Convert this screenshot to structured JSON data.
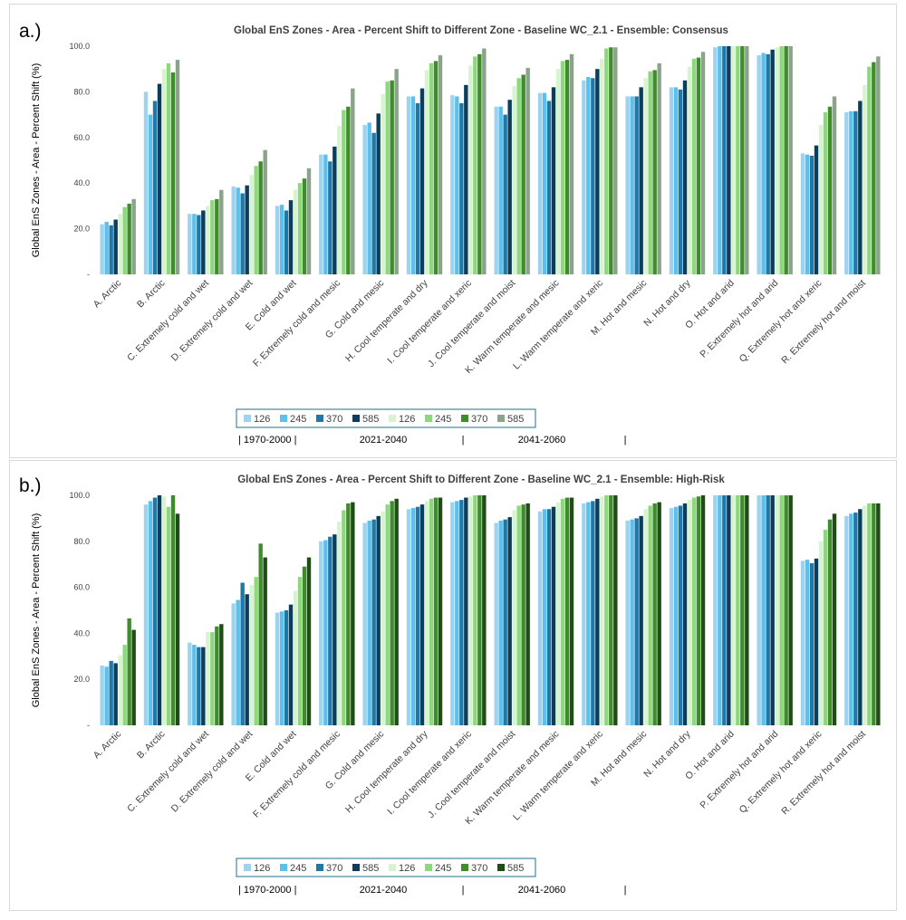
{
  "panels": [
    {
      "label": "a.)"
    },
    {
      "label": "b.)"
    }
  ],
  "periods": {
    "p1": "| 1970-2000 |",
    "p2": "2021-2040",
    "sep2": "|",
    "p3": "2041-2060",
    "sep3": "|"
  },
  "chart_data": [
    {
      "type": "bar",
      "title": "Global EnS Zones - Area - Percent Shift to Different Zone - Baseline WC_2.1 - Ensemble: Consensus",
      "ylabel": "Global EnS Zones - Area - Percent Shift (%)",
      "xlabel": "",
      "ylim": [
        0,
        100
      ],
      "yticks": [
        "-",
        "20.0",
        "40.0",
        "60.0",
        "80.0",
        "100.0"
      ],
      "legend_position": "bottom",
      "categories": [
        "A. Arctic",
        "B. Arctic",
        "C. Extremely cold and wet",
        "D. Extremely cold and wet",
        "E. Cold and wet",
        "F. Extremely cold and mesic",
        "G. Cold and mesic",
        "H. Cool temperate and dry",
        "I. Cool temperate and xeric",
        "J. Cool temperate and moist",
        "K. Warm temperate and mesic",
        "L. Warm temperate and xeric",
        "M. Hot and mesic",
        "N. Hot and dry",
        "O. Hot and arid",
        "P. Extremely hot and arid",
        "Q. Extremely hot and xeric",
        "R. Extremely hot and moist"
      ],
      "series": [
        {
          "name": "126",
          "color": "#9dd3ee",
          "values": [
            22,
            80,
            26.5,
            38.5,
            30,
            52.5,
            65.5,
            78,
            78.5,
            73.5,
            79.5,
            85,
            78,
            82,
            99.5,
            96,
            53,
            71
          ]
        },
        {
          "name": "245",
          "color": "#5bc0eb",
          "values": [
            23,
            70,
            26.5,
            38,
            30.5,
            52.5,
            66.5,
            78,
            78,
            73.5,
            79.5,
            86.5,
            78,
            82,
            100,
            97,
            52.5,
            71.5
          ]
        },
        {
          "name": "370",
          "color": "#1f79a8",
          "values": [
            21.5,
            76,
            26,
            35.5,
            28,
            49.5,
            62,
            75,
            75,
            70,
            76,
            86,
            78,
            81,
            100,
            96.5,
            52,
            71.5
          ]
        },
        {
          "name": "585",
          "color": "#0b3d5c",
          "values": [
            24,
            83.5,
            28,
            39,
            32.5,
            56,
            70.5,
            81.5,
            83,
            76.5,
            82,
            90,
            82,
            85,
            100,
            98.5,
            56.5,
            76
          ]
        },
        {
          "name": "126",
          "color": "#d8f3d0",
          "values": [
            26.5,
            90,
            30,
            43.5,
            37,
            65,
            79,
            89.5,
            91.5,
            82.5,
            90,
            94.5,
            86,
            91,
            100,
            99.5,
            65.5,
            83
          ]
        },
        {
          "name": "245",
          "color": "#8dd77c",
          "values": [
            29.5,
            92.5,
            32.5,
            47.5,
            40,
            72,
            84.5,
            92.5,
            95.5,
            86,
            93.5,
            99,
            89,
            94.5,
            100,
            100,
            71,
            91
          ]
        },
        {
          "name": "370",
          "color": "#3f8c2d",
          "values": [
            31,
            88.5,
            33,
            49.5,
            42,
            73.5,
            85,
            93.5,
            96.5,
            87.5,
            94,
            99.5,
            89.5,
            95,
            100,
            100,
            73.5,
            93
          ]
        },
        {
          "name": "585",
          "color": "#8aa38a",
          "values": [
            33,
            94,
            37,
            54.5,
            46.5,
            81.5,
            90,
            96,
            99,
            90.5,
            96.5,
            99.5,
            92.5,
            97.5,
            100,
            100,
            78,
            95.5
          ]
        }
      ]
    },
    {
      "type": "bar",
      "title": "Global EnS Zones - Area - Percent Shift to Different Zone - Baseline WC_2.1  - Ensemble:  High-Risk",
      "ylabel": "Global EnS Zones - Area - Percent Shift (%)",
      "xlabel": "",
      "ylim": [
        0,
        100
      ],
      "yticks": [
        "-",
        "20.0",
        "40.0",
        "60.0",
        "80.0",
        "100.0"
      ],
      "legend_position": "bottom",
      "categories": [
        "A. Arctic",
        "B. Arctic",
        "C. Extremely cold and wet",
        "D. Extremely cold and wet",
        "E. Cold and wet",
        "F. Extremely cold and mesic",
        "G. Cold and mesic",
        "H. Cool temperate and dry",
        "I. Cool temperate and xeric",
        "J. Cool temperate and moist",
        "K. Warm temperate and mesic",
        "L. Warm temperate and xeric",
        "M. Hot and mesic",
        "N. Hot and dry",
        "O. Hot and arid",
        "P. Extremely hot and arid",
        "Q. Extremely hot and xeric",
        "R. Extremely hot and moist"
      ],
      "series": [
        {
          "name": "126",
          "color": "#9dd3ee",
          "values": [
            26,
            96,
            36,
            53,
            49,
            80,
            88,
            94,
            97,
            88,
            93,
            96.5,
            89,
            94.5,
            100,
            100,
            71.5,
            91
          ]
        },
        {
          "name": "245",
          "color": "#5bc0eb",
          "values": [
            25.5,
            97.5,
            35,
            54.5,
            49.5,
            80.5,
            89,
            94.5,
            97.5,
            89,
            94,
            97,
            89.5,
            95,
            100,
            100,
            72,
            92
          ]
        },
        {
          "name": "370",
          "color": "#1f79a8",
          "values": [
            28,
            99,
            34,
            62,
            50,
            82,
            89.5,
            95,
            98,
            89.5,
            94,
            97.5,
            90,
            95.5,
            100,
            100,
            70.5,
            92.5
          ]
        },
        {
          "name": "585",
          "color": "#0b3d5c",
          "values": [
            27,
            100,
            34,
            57,
            52.5,
            83,
            91,
            96,
            99,
            90.5,
            95,
            98.5,
            91,
            96.5,
            100,
            100,
            72.5,
            94
          ]
        },
        {
          "name": "126",
          "color": "#d8f3d0",
          "values": [
            30.5,
            99.5,
            40.5,
            61,
            58.5,
            88.5,
            93,
            97.5,
            99.5,
            93.5,
            97,
            99.5,
            94,
            98,
            100,
            100,
            80,
            95.5
          ]
        },
        {
          "name": "245",
          "color": "#8dd77c",
          "values": [
            35,
            95,
            40.5,
            64.5,
            64.5,
            93.5,
            96,
            98.5,
            100,
            95.5,
            98.5,
            100,
            95.5,
            99,
            100,
            100,
            85,
            96.5
          ]
        },
        {
          "name": "370",
          "color": "#3f8c2d",
          "values": [
            46.5,
            100,
            43,
            79,
            69,
            96.5,
            97.5,
            99,
            100,
            96,
            99,
            100,
            96.5,
            99.5,
            100,
            100,
            89.5,
            96.5
          ]
        },
        {
          "name": "585",
          "color": "#1e4d16",
          "values": [
            41.5,
            92,
            44,
            73,
            73,
            97,
            98.5,
            99,
            100,
            96.5,
            99,
            100,
            97,
            100,
            100,
            100,
            92,
            96.5
          ]
        }
      ]
    }
  ]
}
